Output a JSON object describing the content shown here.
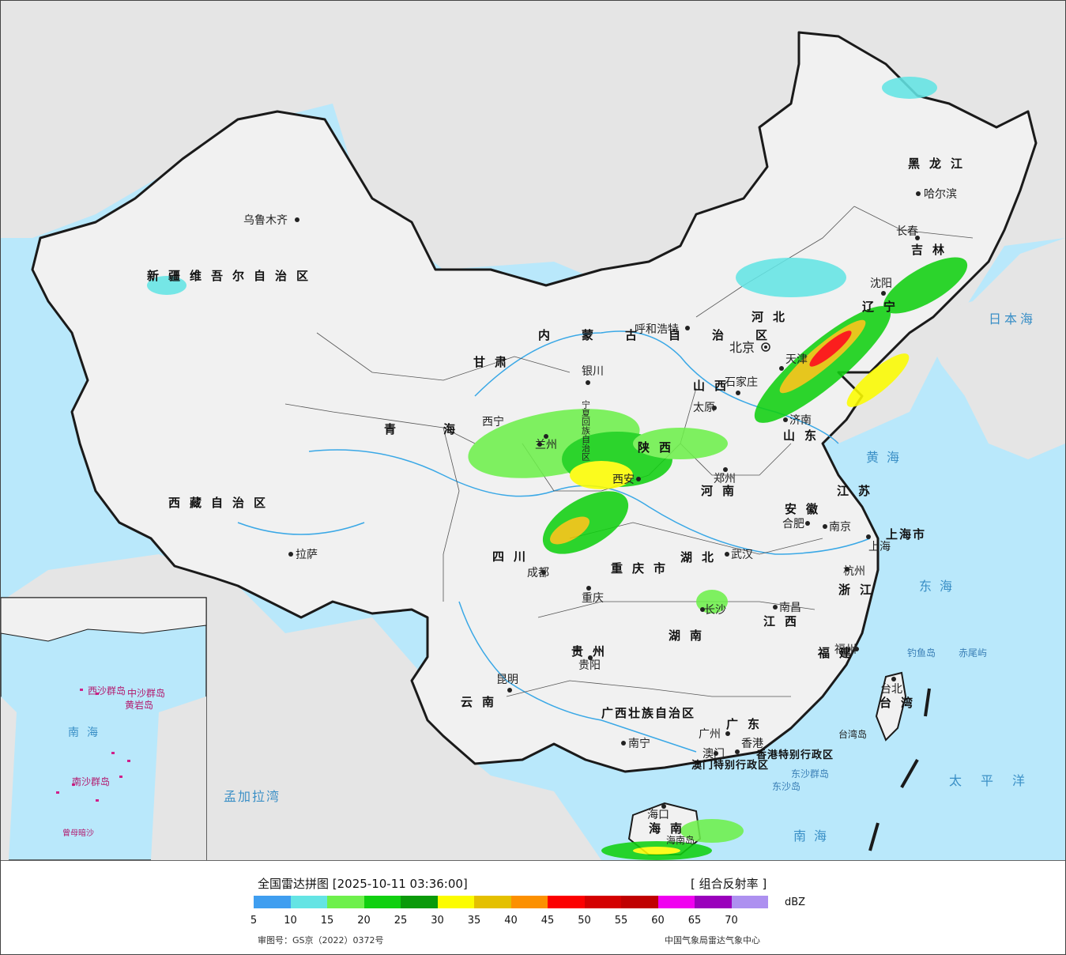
{
  "legend": {
    "title": "全国雷达拼图 [2025-10-11 03:36:00]",
    "product": "[ 组合反射率 ]",
    "unit": "dBZ",
    "approval": "审图号：GS京（2022）0372号",
    "source": "中国气象局雷达气象中心",
    "scale_colors": [
      "#3f9ef0",
      "#64e4e4",
      "#6ef04c",
      "#10d010",
      "#0a9a0a",
      "#fcfc00",
      "#e4c000",
      "#fc9000",
      "#fc0000",
      "#d40000",
      "#c00000",
      "#f000f0",
      "#9a00bc",
      "#ad90f0"
    ],
    "scale_ticks": [
      "5",
      "10",
      "15",
      "20",
      "25",
      "30",
      "35",
      "40",
      "45",
      "50",
      "55",
      "60",
      "65",
      "70"
    ]
  },
  "cities": {
    "urumqi": "乌鲁木齐",
    "lhasa": "拉萨",
    "xining": "西宁",
    "lanzhou": "兰州",
    "yinchuan": "银川",
    "hohhot": "呼和浩特",
    "beijing": "北京",
    "tianjin": "天津",
    "shijiazhuang": "石家庄",
    "taiyuan": "太原",
    "jinan": "济南",
    "zhengzhou": "郑州",
    "xian": "西安",
    "chengdu": "成都",
    "chongqing": "重庆",
    "wuhan": "武汉",
    "hefei": "合肥",
    "nanjing": "南京",
    "shanghai": "上海",
    "hangzhou": "杭州",
    "nanchang": "南昌",
    "changsha": "长沙",
    "guiyang": "贵阳",
    "kunming": "昆明",
    "nanning": "南宁",
    "guangzhou": "广州",
    "fuzhou": "福州",
    "taipei": "台北",
    "hongkong": "香港",
    "macau": "澳门",
    "haikou": "海口",
    "shenyang": "沈阳",
    "changchun": "长春",
    "harbin": "哈尔滨"
  },
  "regions": {
    "xinjiang": "新疆维吾尔自治区",
    "xizang": "西藏自治区",
    "qinghai": "青海",
    "gansu": "甘肃",
    "neimenggu": "内蒙古自治区",
    "ningxia": "宁夏回族自治区",
    "shaanxi": "陕西",
    "shanxi": "山西",
    "hebei": "河北",
    "shandong": "山东",
    "henan": "河南",
    "sichuan": "四川",
    "chongqing_shi": "重庆市",
    "hubei": "湖北",
    "hunan": "湖南",
    "guizhou": "贵州",
    "yunnan": "云南",
    "guangxi": "广西壮族自治区",
    "guangdong": "广东",
    "jiangxi": "江西",
    "anhui": "安徽",
    "jiangsu": "江苏",
    "zhejiang": "浙江",
    "fujian": "福建",
    "taiwan": "台湾",
    "hainan": "海南",
    "shanghai_shi": "上海市",
    "heilongjiang": "黑龙江",
    "jilin": "吉林",
    "liaoning": "辽宁",
    "hk_sar": "香港特别行政区",
    "macau_sar": "澳门特别行政区",
    "hainan_island": "海南岛",
    "taiwan_island": "台湾岛"
  },
  "seas": {
    "huanghai": "黄海",
    "donghai": "东海",
    "nanhai": "南海",
    "riben": "日本海",
    "taipingyang": "太平洋",
    "mengjiala": "孟加拉湾"
  },
  "islands": {
    "diaoyu": "钓鱼岛",
    "chiwei": "赤尾屿",
    "dongsha_qd": "东沙群岛",
    "dongsha": "东沙岛"
  },
  "inset": {
    "xisha": "西沙群岛",
    "zhongsha": "中沙群岛",
    "huangyan": "黄岩岛",
    "nansha": "南沙群岛",
    "zengmu": "曾母暗沙",
    "nanhai": "南海"
  },
  "colors": {
    "ocean": "#b9e8fb",
    "land": "#f1f1f1",
    "foreign": "#e5e5e5",
    "river": "#3aa8e6",
    "border": "#1a1a1a"
  }
}
